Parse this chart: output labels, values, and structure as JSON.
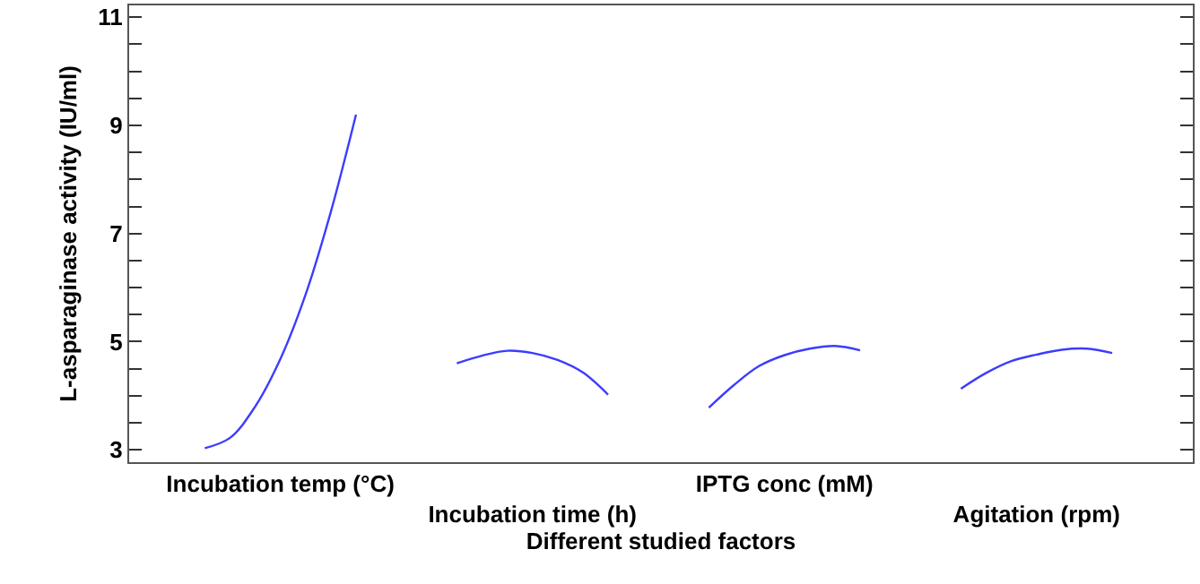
{
  "chart_data": {
    "type": "line",
    "xlabel": "Different studied factors",
    "ylabel": "L-asparaginase activity (IU/ml)",
    "categories": [
      null,
      null,
      null,
      null,
      null,
      "Incubation temp (°C)",
      null,
      null,
      null,
      null,
      null,
      null,
      null,
      null,
      null,
      "Incubation time (h)",
      null,
      null,
      null,
      null,
      null,
      null,
      null,
      null,
      null,
      "IPTG conc (mM)",
      null,
      null,
      null,
      null,
      null,
      null,
      null,
      null,
      null,
      "Agitation (rpm)",
      null,
      null,
      null,
      null,
      null
    ],
    "ylim": [
      2.77,
      11.22
    ],
    "yticks": [
      3,
      {
        "value": 3.5,
        "label": null
      },
      {
        "value": 4,
        "label": null
      },
      {
        "value": 4.5,
        "label": null
      },
      5,
      {
        "value": 5.5,
        "label": null
      },
      {
        "value": 6,
        "label": null
      },
      {
        "value": 6.5,
        "label": null
      },
      7,
      {
        "value": 7.5,
        "label": null
      },
      {
        "value": 8,
        "label": null
      },
      {
        "value": 8.5,
        "label": null
      },
      9,
      {
        "value": 9.5,
        "label": null
      },
      {
        "value": 10,
        "label": null
      },
      {
        "value": 10.5,
        "label": null
      },
      11
    ],
    "marker": "none",
    "line_style": "solid",
    "series": [
      {
        "color": "#3c3cff",
        "values": [
          null,
          null,
          3.03,
          3.22,
          3.8,
          4.68,
          5.87,
          7.4,
          9.2,
          null,
          null,
          null,
          null,
          null,
          null,
          null,
          null,
          null,
          null,
          null,
          null,
          null,
          null,
          null,
          null,
          null,
          null,
          null,
          null,
          null,
          null,
          null,
          null,
          null,
          null,
          null,
          null,
          null,
          null,
          null,
          null
        ]
      },
      {
        "color": "#3c3cff",
        "values": [
          null,
          null,
          null,
          null,
          null,
          null,
          null,
          null,
          null,
          null,
          null,
          null,
          4.6,
          4.74,
          4.83,
          4.79,
          4.66,
          4.43,
          4.02,
          null,
          null,
          null,
          null,
          null,
          null,
          null,
          null,
          null,
          null,
          null,
          null,
          null,
          null,
          null,
          null,
          null,
          null,
          null,
          null,
          null,
          null
        ]
      },
      {
        "color": "#3c3cff",
        "values": [
          null,
          null,
          null,
          null,
          null,
          null,
          null,
          null,
          null,
          null,
          null,
          null,
          null,
          null,
          null,
          null,
          null,
          null,
          null,
          null,
          null,
          null,
          3.78,
          4.2,
          4.55,
          4.75,
          4.87,
          4.92,
          4.84,
          null,
          null,
          null,
          null,
          null,
          null,
          null,
          null,
          null,
          null,
          null,
          null
        ]
      },
      {
        "color": "#3c3cff",
        "values": [
          null,
          null,
          null,
          null,
          null,
          null,
          null,
          null,
          null,
          null,
          null,
          null,
          null,
          null,
          null,
          null,
          null,
          null,
          null,
          null,
          null,
          null,
          null,
          null,
          null,
          null,
          null,
          null,
          null,
          null,
          null,
          null,
          4.13,
          4.42,
          4.64,
          4.76,
          4.85,
          4.87,
          4.79,
          null,
          null
        ]
      }
    ]
  }
}
